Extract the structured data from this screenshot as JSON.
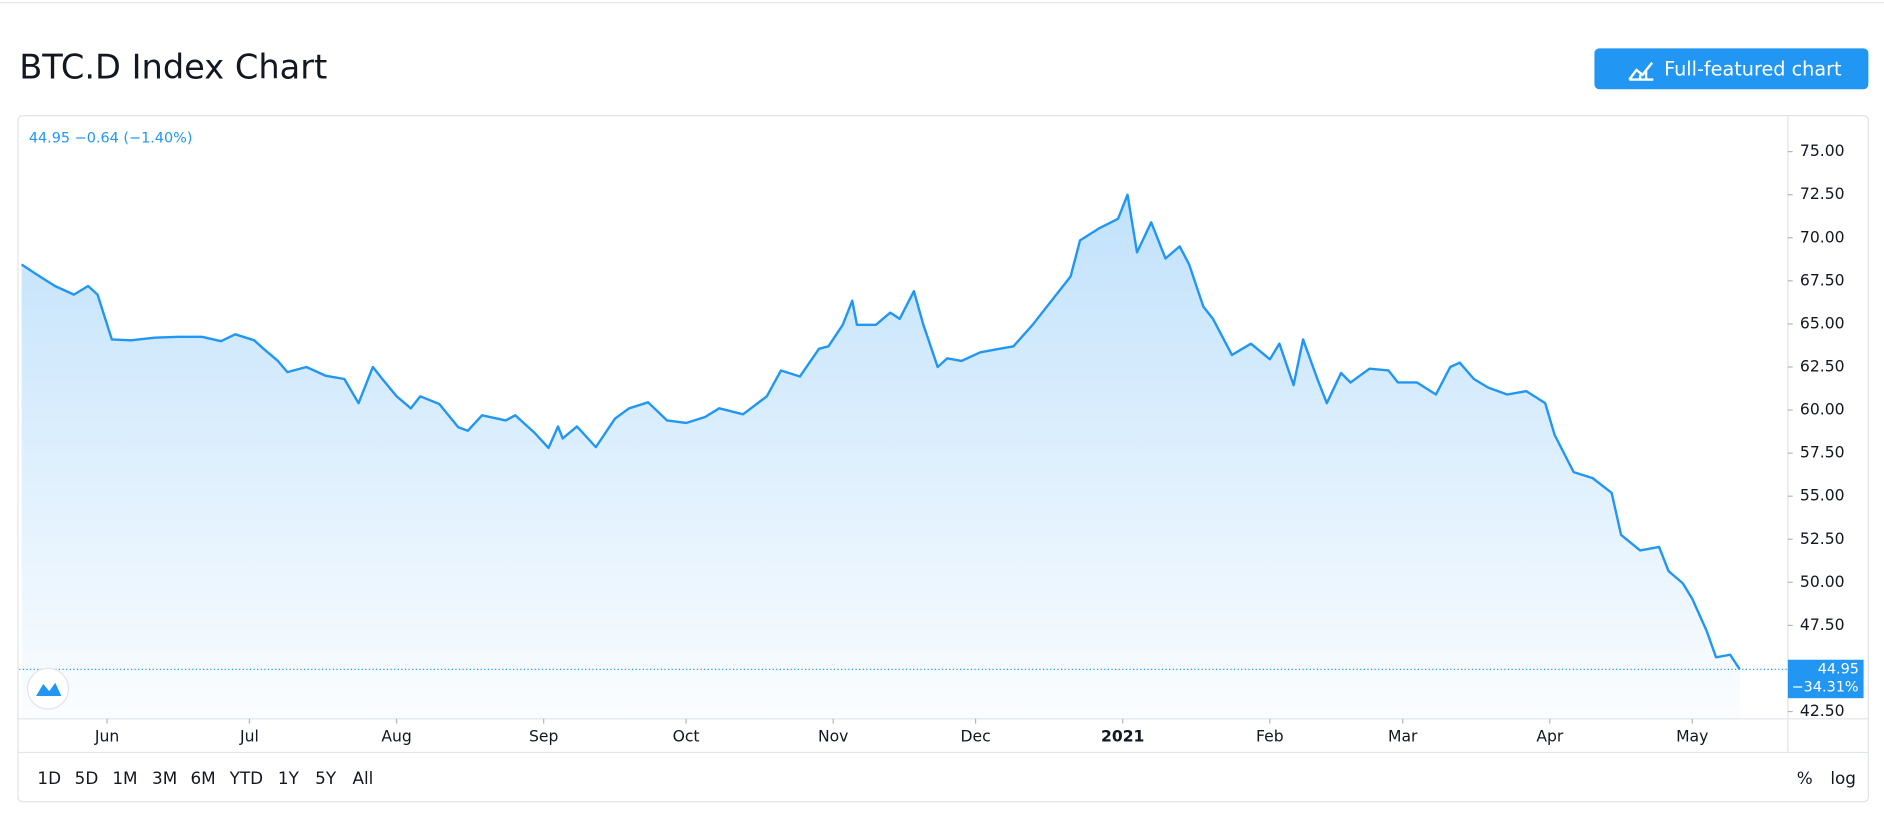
{
  "header": {
    "title": "BTC.D Index Chart",
    "button": "Full-featured chart"
  },
  "chart_data": {
    "type": "line",
    "legend_text": "44.95 −0.64 (−1.40%)",
    "last_price": 44.95,
    "last_change": "−34.31%",
    "x": [
      0,
      3,
      7,
      11,
      14,
      16,
      19,
      23,
      28,
      33,
      38,
      42,
      45,
      49,
      51,
      54,
      56,
      60,
      64,
      68,
      71,
      74,
      76,
      79,
      82,
      84,
      88,
      92,
      94,
      97,
      102,
      104,
      108,
      111,
      113,
      114,
      117,
      121,
      125,
      128,
      132,
      136,
      140,
      144,
      147,
      152,
      157,
      160,
      164,
      168,
      170,
      173,
      175,
      176,
      180,
      183,
      185,
      188,
      190,
      193,
      195,
      198,
      202,
      206,
      209,
      213,
      217,
      221,
      223,
      227,
      231,
      233,
      235,
      238,
      241,
      244,
      246,
      249,
      251,
      255,
      259,
      263,
      265,
      268,
      270,
      273,
      275,
      278,
      280,
      284,
      288,
      290,
      294,
      298,
      301,
      303,
      306,
      309,
      313,
      317,
      321,
      323,
      327,
      331,
      335,
      337,
      341,
      345,
      347,
      350,
      352,
      355,
      357,
      360,
      362
    ],
    "series": [
      {
        "name": "BTC.D",
        "color": "#2196f3",
        "values": [
          68.45,
          67.9,
          67.2,
          66.7,
          67.2,
          66.7,
          64.1,
          64.05,
          64.2,
          64.25,
          64.25,
          64.0,
          64.4,
          64.05,
          63.55,
          62.85,
          62.2,
          62.5,
          62.0,
          61.8,
          60.4,
          62.5,
          61.8,
          60.8,
          60.1,
          60.8,
          60.35,
          59.0,
          58.8,
          59.7,
          59.4,
          59.7,
          58.7,
          57.8,
          59.05,
          58.35,
          59.05,
          57.85,
          59.5,
          60.1,
          60.45,
          59.4,
          59.25,
          59.6,
          60.1,
          59.75,
          60.8,
          62.3,
          61.95,
          63.55,
          63.7,
          64.95,
          66.35,
          64.95,
          64.95,
          65.65,
          65.3,
          66.9,
          64.95,
          62.5,
          63.0,
          62.85,
          63.35,
          63.55,
          63.7,
          64.95,
          66.35,
          67.75,
          69.85,
          70.55,
          71.1,
          72.5,
          69.15,
          70.9,
          68.8,
          69.5,
          68.45,
          66.0,
          65.3,
          63.2,
          63.85,
          62.95,
          63.85,
          61.45,
          64.1,
          61.8,
          60.4,
          62.15,
          61.6,
          62.4,
          62.3,
          61.6,
          61.6,
          60.9,
          62.5,
          62.75,
          61.8,
          61.3,
          60.9,
          61.1,
          60.4,
          58.55,
          56.4,
          56.05,
          55.2,
          52.75,
          51.85,
          52.05,
          50.65,
          49.95,
          49.05,
          47.2,
          45.65,
          45.8,
          44.95
        ]
      }
    ],
    "xlim": [
      0,
      372
    ],
    "xticks": [
      {
        "value": 18,
        "label": "Jun"
      },
      {
        "value": 48,
        "label": "Jul"
      },
      {
        "value": 79,
        "label": "Aug"
      },
      {
        "value": 110,
        "label": "Sep"
      },
      {
        "value": 140,
        "label": "Oct"
      },
      {
        "value": 171,
        "label": "Nov"
      },
      {
        "value": 201,
        "label": "Dec"
      },
      {
        "value": 232,
        "label": "2021"
      },
      {
        "value": 263,
        "label": "Feb"
      },
      {
        "value": 291,
        "label": "Mar"
      },
      {
        "value": 322,
        "label": "Apr"
      },
      {
        "value": 352,
        "label": "May"
      }
    ],
    "ylim": [
      42.08,
      77.09
    ],
    "yticks": [
      {
        "value": 42.5,
        "label": "42.50"
      },
      {
        "value": 45,
        "label": "45.00"
      },
      {
        "value": 47.5,
        "label": "47.50"
      },
      {
        "value": 50,
        "label": "50.00"
      },
      {
        "value": 52.5,
        "label": "52.50"
      },
      {
        "value": 55,
        "label": "55.00"
      },
      {
        "value": 57.5,
        "label": "57.50"
      },
      {
        "value": 60,
        "label": "60.00"
      },
      {
        "value": 62.5,
        "label": "62.50"
      },
      {
        "value": 65,
        "label": "65.00"
      },
      {
        "value": 67.5,
        "label": "67.50"
      },
      {
        "value": 70,
        "label": "70.00"
      },
      {
        "value": 72.5,
        "label": "72.50"
      },
      {
        "value": 75,
        "label": "75.00"
      }
    ],
    "log_scale": false
  },
  "toolbar": {
    "ranges": [
      "1D",
      "5D",
      "1M",
      "3M",
      "6M",
      "YTD",
      "1Y",
      "5Y",
      "All"
    ],
    "percent": "%",
    "log": "log"
  }
}
